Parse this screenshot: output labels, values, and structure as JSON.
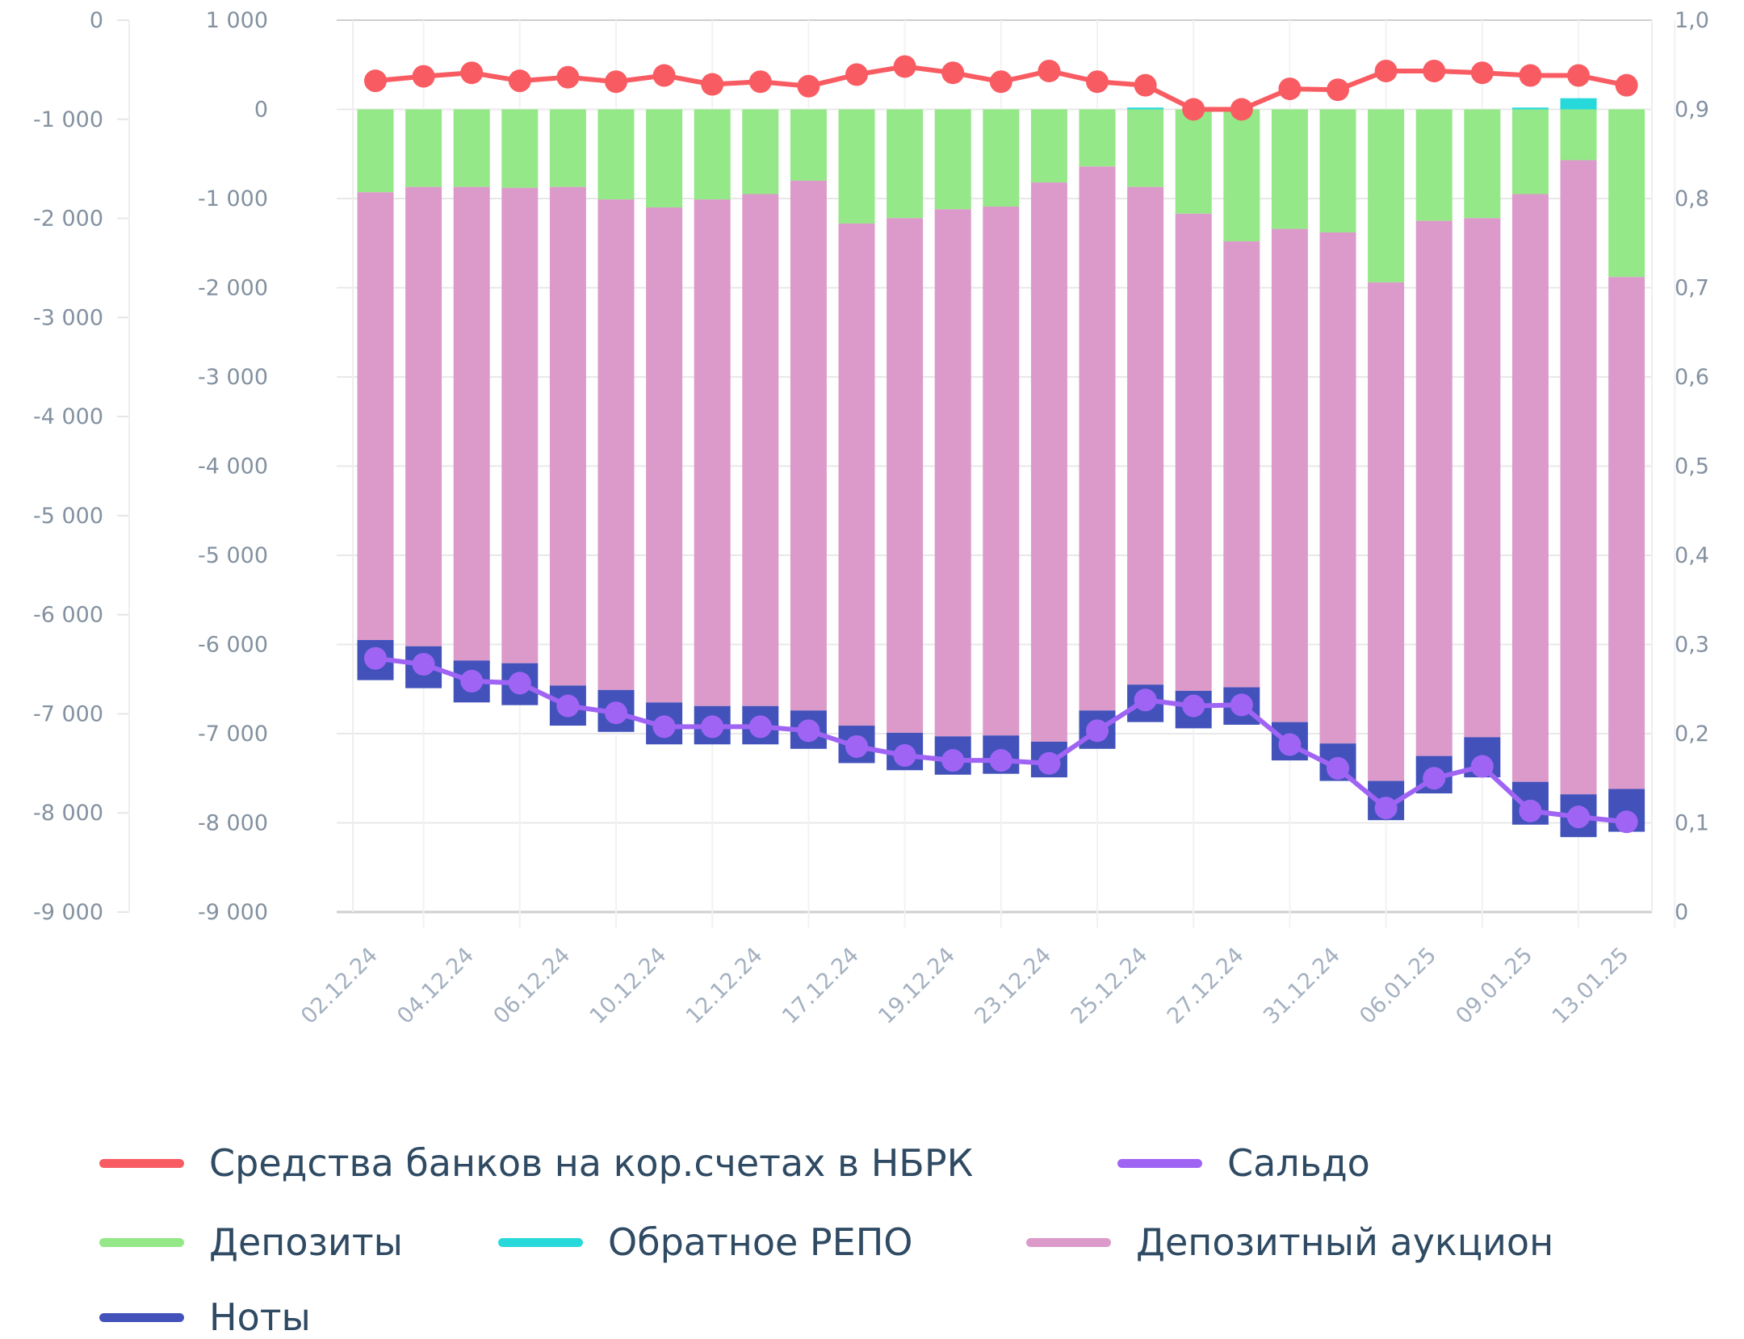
{
  "chart_data": {
    "type": "bar",
    "stacked": true,
    "categories": [
      "02.12.24",
      "",
      "04.12.24",
      "",
      "06.12.24",
      "",
      "10.12.24",
      "",
      "12.12.24",
      "",
      "17.12.24",
      "",
      "19.12.24",
      "",
      "23.12.24",
      "",
      "25.12.24",
      "",
      "27.12.24",
      "",
      "31.12.24",
      "",
      "06.01.25",
      "",
      "09.01.25",
      "",
      "13.01.25"
    ],
    "axes": {
      "left": {
        "range": [
          -9000,
          0
        ],
        "ticks": [
          "0",
          "-1 000",
          "-2 000",
          "-3 000",
          "-4 000",
          "-5 000",
          "-6 000",
          "-7 000",
          "-8 000",
          "-9 000"
        ]
      },
      "middle": {
        "range": [
          -9000,
          1000
        ],
        "ticks": [
          "1 000",
          "0",
          "-1 000",
          "-2 000",
          "-3 000",
          "-4 000",
          "-5 000",
          "-6 000",
          "-7 000",
          "-8 000",
          "-9 000"
        ]
      },
      "right": {
        "range": [
          0,
          1.0
        ],
        "ticks": [
          "1,0",
          "0,9",
          "0,8",
          "0,7",
          "0,6",
          "0,5",
          "0,4",
          "0,3",
          "0,2",
          "0,1",
          "0"
        ]
      }
    },
    "grid": true,
    "legend_position": "bottom",
    "series": [
      {
        "name": "Средства банков на кор.счетах в НБРК",
        "type": "line",
        "axis": "right",
        "color": "#f85c62",
        "values": [
          0.932,
          0.937,
          0.941,
          0.932,
          0.936,
          0.931,
          0.938,
          0.928,
          0.931,
          0.926,
          0.939,
          0.948,
          0.941,
          0.931,
          0.943,
          0.931,
          0.927,
          0.9,
          0.9,
          0.923,
          0.922,
          0.943,
          0.943,
          0.941,
          0.938,
          0.938,
          0.927
        ]
      },
      {
        "name": "Сальдо",
        "type": "line",
        "axis": "left",
        "color": "#a064f5",
        "values": [
          -6440,
          -6500,
          -6670,
          -6690,
          -6920,
          -6990,
          -7130,
          -7130,
          -7130,
          -7170,
          -7330,
          -7420,
          -7470,
          -7470,
          -7500,
          -7170,
          -6860,
          -6920,
          -6910,
          -7310,
          -7550,
          -7950,
          -7650,
          -7530,
          -7980,
          -8040,
          -8090
        ]
      },
      {
        "name": "Депозиты",
        "type": "bar",
        "axis": "middle",
        "color": "#94e887",
        "values": [
          -930,
          -870,
          -870,
          -880,
          -870,
          -1010,
          -1100,
          -1010,
          -950,
          -800,
          -1280,
          -1220,
          -1120,
          -1090,
          -820,
          -640,
          -870,
          -1170,
          -1480,
          -1340,
          -1380,
          -1940,
          -1250,
          -1220,
          -950,
          -570,
          -1880
        ]
      },
      {
        "name": "Обратное РЕПО",
        "type": "bar",
        "axis": "middle",
        "color": "#28d9dc",
        "values": [
          0,
          0,
          0,
          0,
          0,
          0,
          0,
          0,
          0,
          0,
          0,
          0,
          0,
          0,
          0,
          0,
          20,
          0,
          0,
          0,
          0,
          0,
          0,
          0,
          20,
          125,
          0
        ]
      },
      {
        "name": "Депозитный аукцион",
        "type": "bar",
        "axis": "middle",
        "color": "#dc9aca",
        "values": [
          -5020,
          -5150,
          -5310,
          -5330,
          -5590,
          -5500,
          -5550,
          -5680,
          -5740,
          -5940,
          -5630,
          -5770,
          -5910,
          -5930,
          -6270,
          -6100,
          -5580,
          -5350,
          -5000,
          -5530,
          -5730,
          -5590,
          -6000,
          -5820,
          -6590,
          -7110,
          -5740
        ]
      },
      {
        "name": "Ноты",
        "type": "bar",
        "axis": "middle",
        "color": "#4352bb",
        "values": [
          -450,
          -470,
          -470,
          -470,
          -450,
          -470,
          -470,
          -430,
          -430,
          -430,
          -420,
          -420,
          -430,
          -430,
          -400,
          -430,
          -420,
          -420,
          -420,
          -430,
          -420,
          -440,
          -420,
          -450,
          -480,
          -480,
          -480
        ]
      }
    ],
    "legend": [
      {
        "label": "Средства банков на кор.счетах в НБРК",
        "color": "#f85c62"
      },
      {
        "label": "Сальдо",
        "color": "#a064f5"
      },
      {
        "label": "Депозиты",
        "color": "#94e887"
      },
      {
        "label": "Обратное РЕПО",
        "color": "#28d9dc"
      },
      {
        "label": "Депозитный аукцион",
        "color": "#dc9aca"
      },
      {
        "label": "Ноты",
        "color": "#4352bb"
      }
    ]
  }
}
